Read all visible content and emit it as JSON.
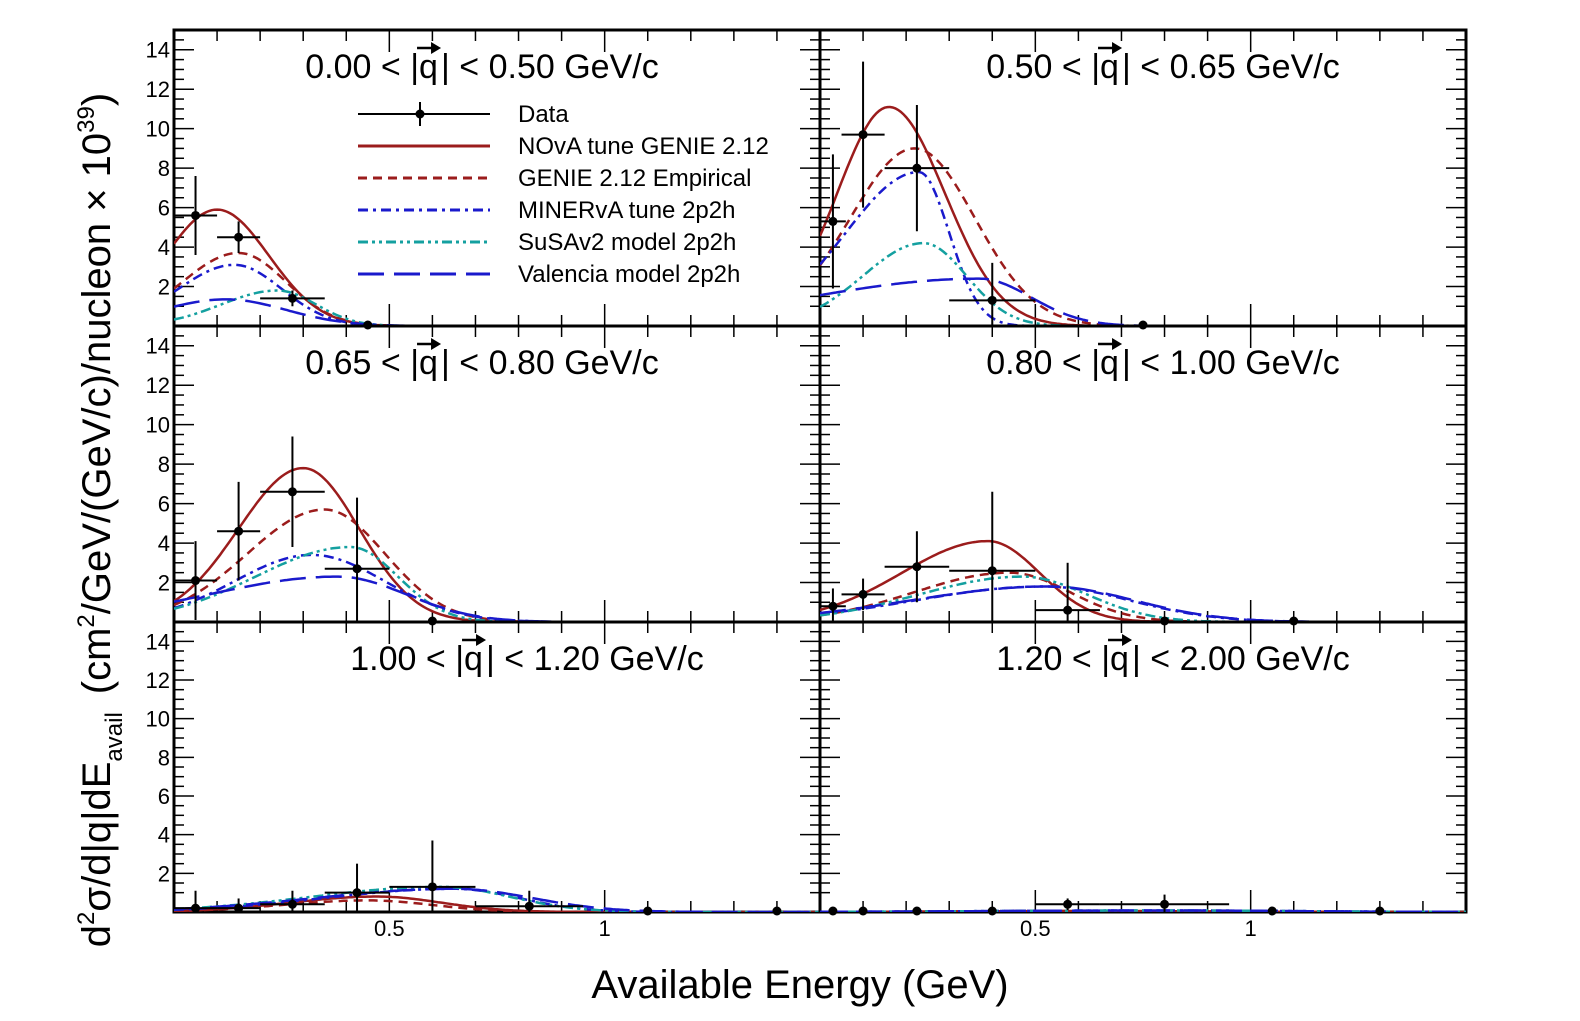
{
  "chart_data": {
    "type": "line",
    "xlabel": "Available Energy (GeV)",
    "ylabel": {
      "prefix": "d",
      "exp2": "2",
      "sigma": "σ/d",
      "q_mid": "|q|",
      "dE": "dE",
      "sub": "avail",
      "units": "(cm",
      "units2": "/GeV/(GeV/c)/nucleon × 10",
      "exp39": "39",
      "close": ")"
    },
    "q_symbol": "q",
    "xlim": [
      0.0,
      1.5
    ],
    "ylim": [
      0,
      15
    ],
    "x_ticks": [
      {
        "value": 0.5,
        "label": "0.5"
      },
      {
        "value": 1.0,
        "label": "1"
      }
    ],
    "y_ticks": [
      {
        "value": 2,
        "label": "2"
      },
      {
        "value": 4,
        "label": "4"
      },
      {
        "value": 6,
        "label": "6"
      },
      {
        "value": 8,
        "label": "8"
      },
      {
        "value": 10,
        "label": "10"
      },
      {
        "value": 12,
        "label": "12"
      },
      {
        "value": 14,
        "label": "14"
      }
    ],
    "legend": {
      "placement": "top-left panel, right of centre",
      "entries": [
        {
          "key": "data",
          "label": "Data",
          "color": "#000000",
          "style": "marker"
        },
        {
          "key": "nova",
          "label": "NOvA tune GENIE 2.12",
          "color": "#9b1c1c",
          "style": "solid"
        },
        {
          "key": "empirical",
          "label": "GENIE 2.12 Empirical",
          "color": "#9b1c1c",
          "style": "dash"
        },
        {
          "key": "minerva",
          "label": "MINERvA tune 2p2h",
          "color": "#1a1acc",
          "style": "dashdot"
        },
        {
          "key": "susa",
          "label": "SuSAv2 model 2p2h",
          "color": "#14a0a0",
          "style": "dashdotdot"
        },
        {
          "key": "valencia",
          "label": "Valencia model 2p2h",
          "color": "#1a1acc",
          "style": "longdash"
        }
      ]
    },
    "panels": [
      {
        "title_left": "0.00 < |",
        "title_right": "| < 0.50 GeV/c",
        "data": [
          {
            "x": 0.05,
            "xerr": 0.05,
            "y": 5.6,
            "yerr": 2.0
          },
          {
            "x": 0.15,
            "xerr": 0.05,
            "y": 4.5,
            "yerr": 0.8
          },
          {
            "x": 0.275,
            "xerr": 0.075,
            "y": 1.4,
            "yerr": 0.4
          },
          {
            "x": 0.45,
            "xerr": 0.0,
            "y": 0.0,
            "yerr": 0.0
          }
        ],
        "series": {
          "nova": {
            "peak": 5.9,
            "mu": 0.1,
            "sl": 0.12,
            "sr": 0.12
          },
          "empirical": {
            "peak": 3.7,
            "mu": 0.15,
            "sl": 0.13,
            "sr": 0.11
          },
          "minerva": {
            "peak": 3.1,
            "mu": 0.14,
            "sl": 0.13,
            "sr": 0.11
          },
          "susa": {
            "peak": 1.8,
            "mu": 0.24,
            "sl": 0.13,
            "sr": 0.09
          },
          "valencia": {
            "peak": 1.35,
            "mu": 0.12,
            "sl": 0.15,
            "sr": 0.14
          }
        }
      },
      {
        "title_left": "0.50 < |",
        "title_right": "| < 0.65 GeV/c",
        "data": [
          {
            "x": 0.03,
            "xerr": 0.03,
            "y": 5.3,
            "yerr": 3.4
          },
          {
            "x": 0.1,
            "xerr": 0.05,
            "y": 9.7,
            "yerr": 3.7
          },
          {
            "x": 0.225,
            "xerr": 0.075,
            "y": 8.0,
            "yerr": 3.2
          },
          {
            "x": 0.4,
            "xerr": 0.1,
            "y": 1.3,
            "yerr": 1.9
          },
          {
            "x": 0.75,
            "xerr": 0.0,
            "y": 0.0,
            "yerr": 0.0
          }
        ],
        "series": {
          "nova": {
            "peak": 11.1,
            "mu": 0.16,
            "sl": 0.12,
            "sr": 0.13
          },
          "empirical": {
            "peak": 9.0,
            "mu": 0.22,
            "sl": 0.15,
            "sr": 0.14
          },
          "minerva": {
            "peak": 7.8,
            "mu": 0.23,
            "sl": 0.17,
            "sr": 0.07
          },
          "susa": {
            "peak": 4.2,
            "mu": 0.24,
            "sl": 0.14,
            "sr": 0.1
          },
          "valencia": {
            "peak": 2.4,
            "mu": 0.37,
            "sl": 0.4,
            "sr": 0.12
          }
        }
      },
      {
        "title_left": "0.65 < |",
        "title_right": "| < 0.80 GeV/c",
        "data": [
          {
            "x": 0.05,
            "xerr": 0.05,
            "y": 2.1,
            "yerr": 2.0
          },
          {
            "x": 0.15,
            "xerr": 0.05,
            "y": 4.6,
            "yerr": 2.5
          },
          {
            "x": 0.275,
            "xerr": 0.075,
            "y": 6.6,
            "yerr": 2.8
          },
          {
            "x": 0.425,
            "xerr": 0.075,
            "y": 2.7,
            "yerr": 3.6
          },
          {
            "x": 0.6,
            "xerr": 0.0,
            "y": 0.0,
            "yerr": 0.0
          }
        ],
        "series": {
          "nova": {
            "peak": 7.8,
            "mu": 0.3,
            "sl": 0.15,
            "sr": 0.13
          },
          "empirical": {
            "peak": 5.7,
            "mu": 0.35,
            "sl": 0.18,
            "sr": 0.14
          },
          "minerva": {
            "peak": 3.4,
            "mu": 0.32,
            "sl": 0.18,
            "sr": 0.17
          },
          "susa": {
            "peak": 3.8,
            "mu": 0.41,
            "sl": 0.22,
            "sr": 0.11
          },
          "valencia": {
            "peak": 2.3,
            "mu": 0.38,
            "sl": 0.3,
            "sr": 0.16
          }
        }
      },
      {
        "title_left": "0.80 < |",
        "title_right": "| < 1.00 GeV/c",
        "data": [
          {
            "x": 0.03,
            "xerr": 0.03,
            "y": 0.8,
            "yerr": 0.9
          },
          {
            "x": 0.1,
            "xerr": 0.05,
            "y": 1.4,
            "yerr": 0.8
          },
          {
            "x": 0.225,
            "xerr": 0.075,
            "y": 2.8,
            "yerr": 1.8
          },
          {
            "x": 0.4,
            "xerr": 0.1,
            "y": 2.6,
            "yerr": 4.0
          },
          {
            "x": 0.575,
            "xerr": 0.075,
            "y": 0.6,
            "yerr": 2.4
          },
          {
            "x": 0.8,
            "xerr": 0.0,
            "y": 0.0,
            "yerr": 0.0
          },
          {
            "x": 1.1,
            "xerr": 0.0,
            "y": 0.0,
            "yerr": 0.0
          }
        ],
        "series": {
          "nova": {
            "peak": 4.1,
            "mu": 0.39,
            "sl": 0.2,
            "sr": 0.12
          },
          "empirical": {
            "peak": 2.5,
            "mu": 0.44,
            "sl": 0.22,
            "sr": 0.14
          },
          "minerva": {
            "peak": 1.8,
            "mu": 0.52,
            "sl": 0.3,
            "sr": 0.2
          },
          "susa": {
            "peak": 2.3,
            "mu": 0.47,
            "sl": 0.24,
            "sr": 0.15
          },
          "valencia": {
            "peak": 1.8,
            "mu": 0.53,
            "sl": 0.32,
            "sr": 0.2
          }
        }
      },
      {
        "title_left": "1.00 < |",
        "title_right": "| < 1.20 GeV/c",
        "data": [
          {
            "x": 0.05,
            "xerr": 0.05,
            "y": 0.2,
            "yerr": 0.9
          },
          {
            "x": 0.15,
            "xerr": 0.05,
            "y": 0.2,
            "yerr": 0.5
          },
          {
            "x": 0.275,
            "xerr": 0.075,
            "y": 0.4,
            "yerr": 0.7
          },
          {
            "x": 0.425,
            "xerr": 0.075,
            "y": 1.0,
            "yerr": 1.5
          },
          {
            "x": 0.6,
            "xerr": 0.1,
            "y": 1.3,
            "yerr": 2.4
          },
          {
            "x": 0.825,
            "xerr": 0.125,
            "y": 0.3,
            "yerr": 0.8
          },
          {
            "x": 1.1,
            "xerr": 0.0,
            "y": 0.0,
            "yerr": 0.0
          },
          {
            "x": 1.4,
            "xerr": 0.0,
            "y": 0.0,
            "yerr": 0.0
          }
        ],
        "series": {
          "nova": {
            "peak": 0.8,
            "mu": 0.47,
            "sl": 0.2,
            "sr": 0.15
          },
          "empirical": {
            "peak": 0.6,
            "mu": 0.45,
            "sl": 0.2,
            "sr": 0.15
          },
          "minerva": {
            "peak": 1.2,
            "mu": 0.65,
            "sl": 0.3,
            "sr": 0.15
          },
          "susa": {
            "peak": 1.3,
            "mu": 0.62,
            "sl": 0.3,
            "sr": 0.16
          },
          "valencia": {
            "peak": 1.2,
            "mu": 0.65,
            "sl": 0.32,
            "sr": 0.18
          }
        }
      },
      {
        "title_left": "1.20 < |",
        "title_right": "| < 2.00 GeV/c",
        "data": [
          {
            "x": 0.03,
            "xerr": 0.0,
            "y": 0.0,
            "yerr": 0.0
          },
          {
            "x": 0.1,
            "xerr": 0.0,
            "y": 0.0,
            "yerr": 0.0
          },
          {
            "x": 0.225,
            "xerr": 0.0,
            "y": 0.0,
            "yerr": 0.0
          },
          {
            "x": 0.4,
            "xerr": 0.0,
            "y": 0.0,
            "yerr": 0.0
          },
          {
            "x": 0.575,
            "xerr": 0.075,
            "y": 0.4,
            "yerr": 0.3
          },
          {
            "x": 0.8,
            "xerr": 0.15,
            "y": 0.4,
            "yerr": 0.5
          },
          {
            "x": 1.05,
            "xerr": 0.0,
            "y": 0.0,
            "yerr": 0.0
          },
          {
            "x": 1.3,
            "xerr": 0.0,
            "y": 0.0,
            "yerr": 0.0
          }
        ],
        "series": {
          "nova": {
            "peak": 0.05,
            "mu": 0.6,
            "sl": 0.3,
            "sr": 0.3
          },
          "empirical": {
            "peak": 0.05,
            "mu": 0.6,
            "sl": 0.3,
            "sr": 0.3
          },
          "minerva": {
            "peak": 0.08,
            "mu": 0.8,
            "sl": 0.4,
            "sr": 0.3
          },
          "susa": {
            "peak": 0.08,
            "mu": 0.8,
            "sl": 0.4,
            "sr": 0.3
          },
          "valencia": {
            "peak": 0.08,
            "mu": 0.8,
            "sl": 0.4,
            "sr": 0.3
          }
        }
      }
    ]
  }
}
